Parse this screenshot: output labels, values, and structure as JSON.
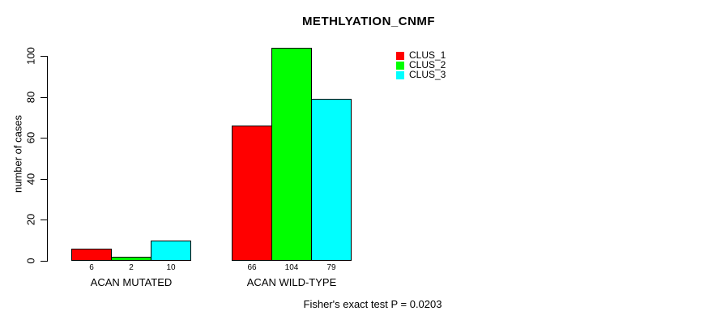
{
  "chart_data": {
    "type": "bar",
    "title": "METHLYATION_CNMF",
    "ylabel": "number of cases",
    "xlabel": "",
    "categories": [
      "ACAN MUTATED",
      "ACAN WILD-TYPE"
    ],
    "series": [
      {
        "name": "CLUS_1",
        "color": "#ff0000",
        "values": [
          6,
          66
        ]
      },
      {
        "name": "CLUS_2",
        "color": "#00ff00",
        "values": [
          2,
          104
        ]
      },
      {
        "name": "CLUS_3",
        "color": "#00ffff",
        "values": [
          10,
          79
        ]
      }
    ],
    "y_ticks": [
      0,
      20,
      40,
      60,
      80,
      100
    ],
    "ylim": [
      0,
      100
    ],
    "grid": false,
    "legend_position": "top-right",
    "legend_entries": [
      "CLUS_1",
      "CLUS_2",
      "CLUS_3"
    ],
    "bar_border_color": "#000000",
    "annotation": "Fisher's exact test P = 0.0203"
  }
}
